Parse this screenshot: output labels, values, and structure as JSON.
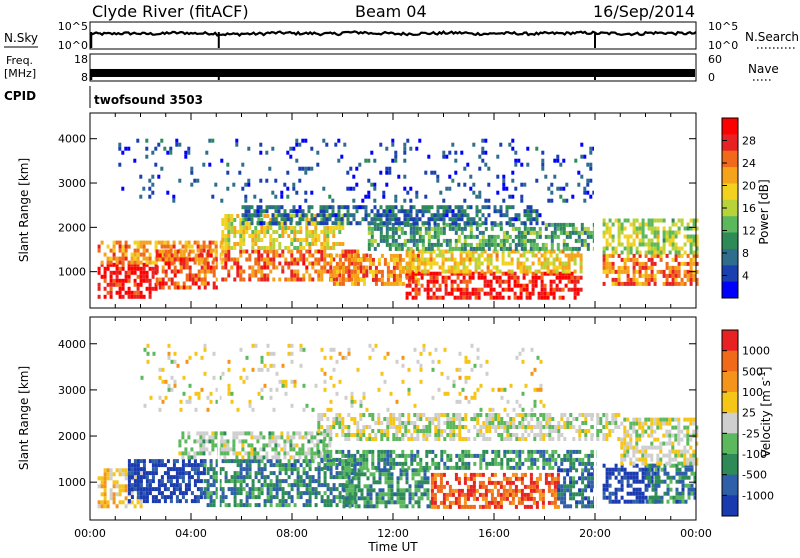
{
  "header": {
    "station": "Clyde River (fitACF)",
    "beam": "Beam 04",
    "date": "16/Sep/2014"
  },
  "chart_data": [
    {
      "type": "line",
      "panel": "noise",
      "left_label": "N.Sky",
      "right_label": "N.Search",
      "left_ticks": [
        "10^5",
        "10^0"
      ],
      "right_ticks": [
        "10^5",
        "10^0"
      ],
      "xlim": [
        "00:00",
        "24:00"
      ],
      "series": [
        {
          "values": [
            3.0,
            3.1,
            3.0,
            3.2,
            3.1,
            2.9,
            3.0,
            3.2,
            3.1,
            3.0,
            3.3,
            3.1,
            3.0,
            3.1,
            3.2,
            3.0,
            3.1,
            3.0,
            3.1,
            3.2,
            3.1,
            3.0,
            3.2,
            3.1
          ]
        }
      ],
      "gaps_hours": [
        0.05,
        5.1,
        20.0
      ]
    },
    {
      "type": "line",
      "panel": "frequency",
      "left_label": "Freq.",
      "left_unit": "[MHz]",
      "right_label": "Nave",
      "left_ticks": [
        "18",
        "8"
      ],
      "right_ticks": [
        "60",
        "0"
      ],
      "series": [
        {
          "values": [
            10.7,
            10.7,
            10.7,
            10.7,
            10.7,
            10.7,
            10.7,
            10.7,
            10.7,
            10.7,
            10.7,
            10.7,
            10.7,
            10.7,
            10.7,
            10.7,
            10.7,
            10.7,
            10.7,
            10.7,
            10.7,
            10.7,
            10.7,
            10.7
          ]
        }
      ]
    },
    {
      "type": "table",
      "panel": "cpid",
      "label": "CPID",
      "text": "twofsound 3503"
    },
    {
      "type": "heatmap",
      "panel": "power",
      "ylabel": "Slant Range [km]",
      "yticks": [
        1000,
        2000,
        3000,
        4000
      ],
      "ylim": [
        180,
        4580
      ],
      "xlim_hours": [
        0,
        24
      ],
      "xticks": [
        "00:00",
        "04:00",
        "08:00",
        "12:00",
        "16:00",
        "20:00",
        "00:00"
      ],
      "colorbar_label": "Power [dB]",
      "colorbar_ticks": [
        "28",
        "24",
        "20",
        "16",
        "12",
        "8",
        "4"
      ],
      "colors": [
        "#0000ff",
        "#1a40b0",
        "#2e6e8c",
        "#2e8b57",
        "#5cb85c",
        "#b8d23a",
        "#f2d21f",
        "#f5a31a",
        "#f06a1a",
        "#e82222",
        "#ff0000"
      ],
      "bands": [
        {
          "t0": 0.3,
          "t1": 2.6,
          "r0": 400,
          "r1": 1200,
          "level": 0.93
        },
        {
          "t0": 0.3,
          "t1": 5.2,
          "r0": 1200,
          "r1": 1700,
          "level": 0.7
        },
        {
          "t0": 2.6,
          "t1": 5.0,
          "r0": 600,
          "r1": 1500,
          "level": 0.8
        },
        {
          "t0": 5.2,
          "t1": 11.0,
          "r0": 800,
          "r1": 1500,
          "level": 0.78
        },
        {
          "t0": 5.2,
          "t1": 10.0,
          "r0": 1500,
          "r1": 2300,
          "level": 0.55
        },
        {
          "t0": 9.5,
          "t1": 13.0,
          "r0": 700,
          "r1": 1400,
          "level": 0.7
        },
        {
          "t0": 12.5,
          "t1": 19.5,
          "r0": 400,
          "r1": 1000,
          "level": 0.9
        },
        {
          "t0": 12.5,
          "t1": 19.5,
          "r0": 1000,
          "r1": 1500,
          "level": 0.6
        },
        {
          "t0": 11.0,
          "t1": 20.0,
          "r0": 1500,
          "r1": 2100,
          "level": 0.35
        },
        {
          "t0": 6.0,
          "t1": 18.0,
          "r0": 2100,
          "r1": 2500,
          "level": 0.22
        },
        {
          "t0": 20.3,
          "t1": 24.0,
          "r0": 700,
          "r1": 1400,
          "level": 0.75
        },
        {
          "t0": 20.3,
          "t1": 24.0,
          "r0": 1400,
          "r1": 2200,
          "level": 0.5
        },
        {
          "t0": 1.0,
          "t1": 20.0,
          "r0": 2600,
          "r1": 4000,
          "level": 0.15
        }
      ]
    },
    {
      "type": "heatmap",
      "panel": "velocity",
      "ylabel": "Slant Range [km]",
      "yticks": [
        1000,
        2000,
        3000,
        4000
      ],
      "ylim": [
        180,
        4580
      ],
      "xlim_hours": [
        0,
        24
      ],
      "xticks": [
        "00:00",
        "04:00",
        "08:00",
        "12:00",
        "16:00",
        "20:00",
        "00:00"
      ],
      "xlabel": "Time UT",
      "colorbar_label": "Velocity [m s^-1]",
      "colorbar_ticks": [
        "1000",
        "500",
        "100",
        "25",
        "-25",
        "-100",
        "-500",
        "-1000"
      ],
      "colors": [
        "#1a3ab0",
        "#2e5fa8",
        "#2e8b57",
        "#5cb85c",
        "#cfcfcf",
        "#f5c518",
        "#f5941a",
        "#f06a1a",
        "#e82222"
      ],
      "bands": [
        {
          "t0": 0.3,
          "t1": 2.0,
          "r0": 500,
          "r1": 1300,
          "level": 0.62
        },
        {
          "t0": 1.5,
          "t1": 4.5,
          "r0": 600,
          "r1": 1500,
          "level": 0.05
        },
        {
          "t0": 4.5,
          "t1": 10.5,
          "r0": 500,
          "r1": 1500,
          "level": 0.25
        },
        {
          "t0": 3.5,
          "t1": 9.5,
          "r0": 1500,
          "r1": 2100,
          "level": 0.45
        },
        {
          "t0": 10.0,
          "t1": 13.5,
          "r0": 500,
          "r1": 1300,
          "level": 0.3
        },
        {
          "t0": 13.5,
          "t1": 18.5,
          "r0": 450,
          "r1": 1200,
          "level": 0.85
        },
        {
          "t0": 9.0,
          "t1": 20.0,
          "r0": 1300,
          "r1": 1700,
          "level": 0.3
        },
        {
          "t0": 9.0,
          "t1": 21.0,
          "r0": 1900,
          "r1": 2500,
          "level": 0.5
        },
        {
          "t0": 18.5,
          "t1": 20.0,
          "r0": 500,
          "r1": 1300,
          "level": 0.2
        },
        {
          "t0": 20.3,
          "t1": 22.5,
          "r0": 600,
          "r1": 1400,
          "level": 0.05
        },
        {
          "t0": 22.0,
          "t1": 24.0,
          "r0": 600,
          "r1": 1400,
          "level": 0.25
        },
        {
          "t0": 21.0,
          "t1": 24.0,
          "r0": 1400,
          "r1": 2400,
          "level": 0.52
        },
        {
          "t0": 2.0,
          "t1": 18.0,
          "r0": 2600,
          "r1": 4000,
          "level": 0.55
        }
      ]
    }
  ]
}
